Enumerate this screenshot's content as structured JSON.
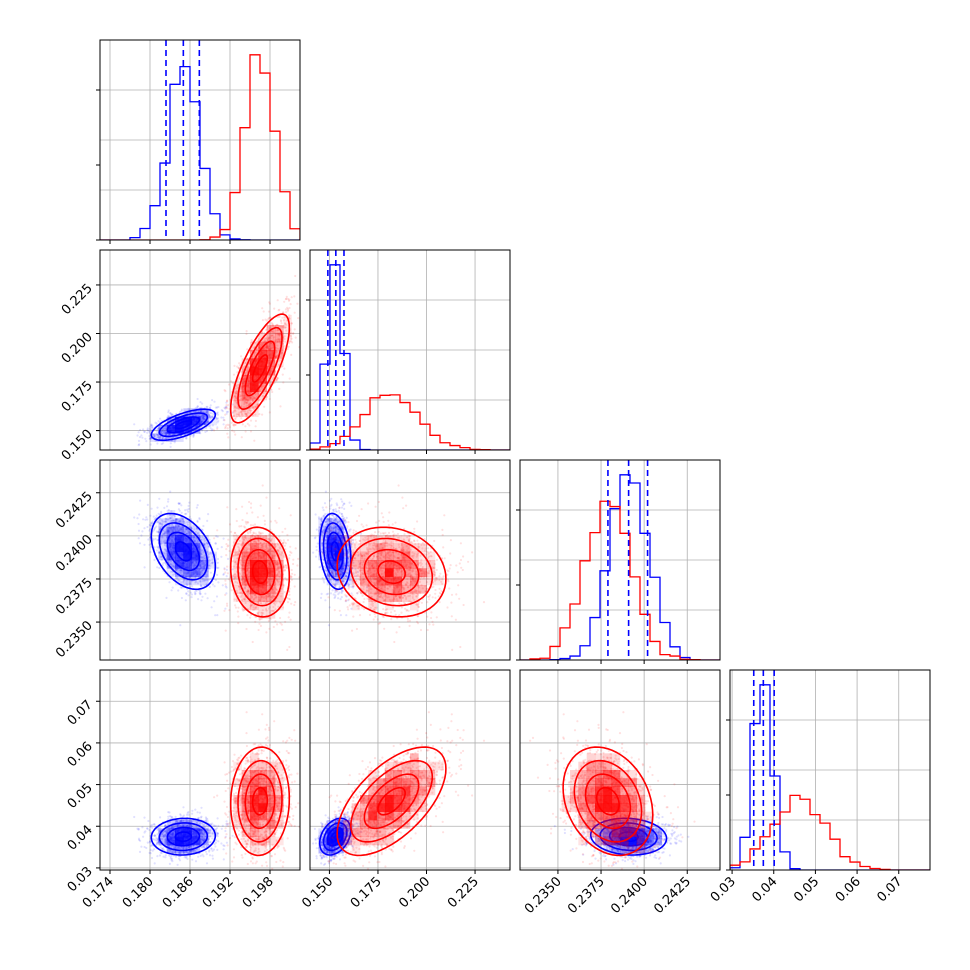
{
  "chart_data": {
    "type": "corner",
    "colors": {
      "blue": "#0000ff",
      "red": "#ff0000",
      "grid": "#b0b0b0",
      "axes": "#000000"
    },
    "series": [],
    "dashed_quantiles_series": "blue",
    "parameters": [
      {
        "range": [
          0.1725,
          0.2025
        ],
        "ticks": [
          0.174,
          0.18,
          0.186,
          0.192,
          0.198
        ],
        "tick_labels": [
          "0.174",
          "0.180",
          "0.186",
          "0.192",
          "0.198"
        ]
      },
      {
        "range": [
          0.14,
          0.243
        ],
        "ticks": [
          0.15,
          0.175,
          0.2,
          0.225
        ],
        "tick_labels": [
          "0.150",
          "0.175",
          "0.200",
          "0.225"
        ]
      },
      {
        "range": [
          0.2328,
          0.2444
        ],
        "ticks": [
          0.235,
          0.2375,
          0.24,
          0.2425
        ],
        "tick_labels": [
          "0.2350",
          "0.2375",
          "0.2400",
          "0.2425"
        ]
      },
      {
        "range": [
          0.0295,
          0.0775
        ],
        "ticks": [
          0.03,
          0.04,
          0.05,
          0.06,
          0.07
        ],
        "tick_labels": [
          "0.03",
          "0.04",
          "0.05",
          "0.06",
          "0.07"
        ]
      }
    ],
    "posteriors": {
      "blue": {
        "mean": [
          0.185,
          0.153,
          0.2391,
          0.0375
        ],
        "sd": [
          0.0024,
          0.004,
          0.0011,
          0.0022
        ],
        "corr": [
          [
            1,
            0.65,
            -0.4,
            0.05
          ],
          [
            0.65,
            1,
            -0.2,
            0.35
          ],
          [
            -0.4,
            -0.2,
            1,
            -0.1
          ],
          [
            0.05,
            0.35,
            -0.1,
            1
          ]
        ]
      },
      "red": {
        "mean": [
          0.1965,
          0.182,
          0.2379,
          0.046
        ],
        "sd": [
          0.0022,
          0.014,
          0.0013,
          0.0065
        ],
        "corr": [
          [
            1,
            0.75,
            -0.1,
            0.05
          ],
          [
            0.75,
            1,
            -0.15,
            0.6
          ],
          [
            -0.1,
            -0.15,
            1,
            -0.25
          ],
          [
            0.05,
            0.6,
            -0.25,
            1
          ]
        ]
      }
    },
    "quantiles_blue": [
      [
        0.1824,
        0.185,
        0.1874
      ],
      [
        0.1492,
        0.1533,
        0.1575
      ],
      [
        0.2379,
        0.2391,
        0.2402
      ],
      [
        0.0352,
        0.0375,
        0.0401
      ]
    ],
    "grid": true,
    "contour_levels": [
      0.118,
      0.393,
      0.675,
      0.864
    ]
  }
}
